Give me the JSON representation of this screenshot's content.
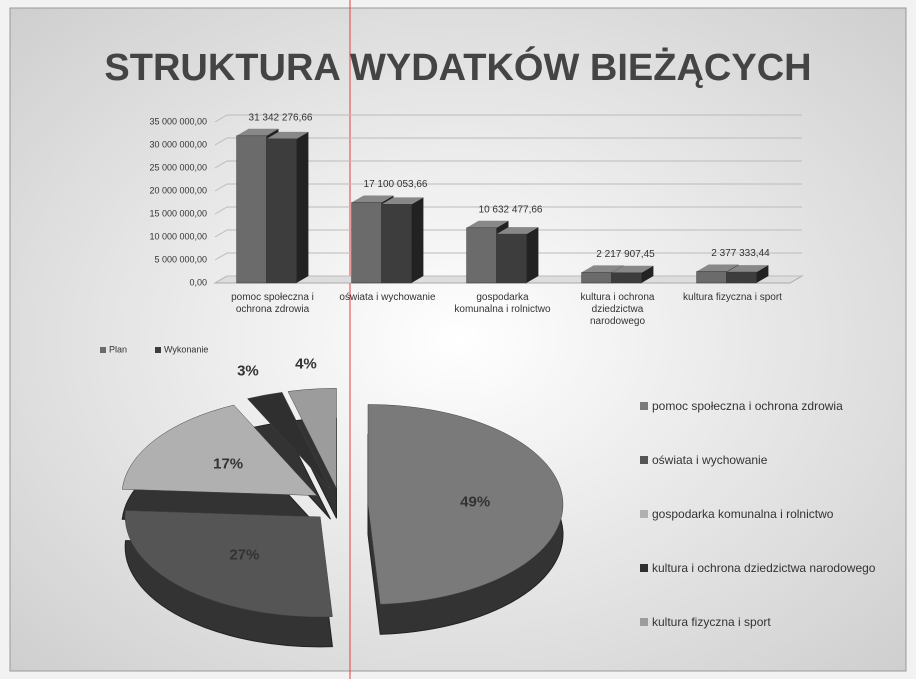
{
  "chart_data": [
    {
      "type": "bar3d",
      "title": "STRUKTURA WYDATKÓW BIEŻĄCYCH",
      "categories": [
        "pomoc społeczna i ochrona zdrowia",
        "oświata i wychowanie",
        "gospodarka komunalna i rolnictwo",
        "kultura i ochrona dziedzictwa narodowego",
        "kultura fizyczna i sport"
      ],
      "series": [
        {
          "name": "Plan",
          "color": "#6b6b6b",
          "values": [
            32000000,
            17500000,
            12000000,
            2300000,
            2500000
          ]
        },
        {
          "name": "Wykonanie",
          "color": "#3d3d3d",
          "values": [
            31342276.66,
            17100053.66,
            10632477.66,
            2217907.45,
            2377333.44
          ],
          "value_labels": [
            "31 342 276,66",
            "17 100 053,66",
            "10 632 477,66",
            "2 217 907,45",
            "2 377 333,44"
          ]
        }
      ],
      "ylim": [
        0,
        35000000
      ],
      "yticks": [
        {
          "value": 0,
          "label": "0,00"
        },
        {
          "value": 5000000,
          "label": "5 000 000,00"
        },
        {
          "value": 10000000,
          "label": "10 000 000,00"
        },
        {
          "value": 15000000,
          "label": "15 000 000,00"
        },
        {
          "value": 20000000,
          "label": "20 000 000,00"
        },
        {
          "value": 25000000,
          "label": "25 000 000,00"
        },
        {
          "value": 30000000,
          "label": "30 000 000,00"
        },
        {
          "value": 35000000,
          "label": "35 000 000,00"
        }
      ],
      "grid": true
    },
    {
      "type": "pie",
      "categories": [
        "pomoc społeczna i ochrona zdrowia",
        "oświata i wychowanie",
        "gospodarka komunalna i rolnictwo",
        "kultura i ochrona dziedzictwa narodowego",
        "kultura fizyczna i sport"
      ],
      "values": [
        49,
        27,
        17,
        3,
        4
      ],
      "value_labels": [
        "49%",
        "27%",
        "17%",
        "3%",
        "4%"
      ],
      "colors": [
        "#7a7a7a",
        "#555555",
        "#b0b0b0",
        "#2f2f2f",
        "#9c9c9c"
      ]
    }
  ]
}
